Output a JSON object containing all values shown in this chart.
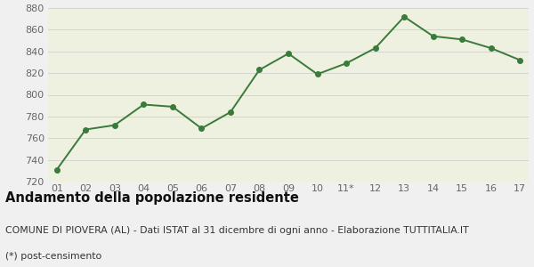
{
  "x_labels": [
    "01",
    "02",
    "03",
    "04",
    "05",
    "06",
    "07",
    "08",
    "09",
    "10",
    "11*",
    "12",
    "13",
    "14",
    "15",
    "16",
    "17"
  ],
  "y_values": [
    731,
    768,
    772,
    791,
    789,
    769,
    784,
    823,
    838,
    819,
    829,
    843,
    872,
    854,
    851,
    843,
    832
  ],
  "line_color": "#3a7a3a",
  "fill_color": "#eef0e0",
  "marker_color": "#3a7a3a",
  "background_color": "#f0f0f0",
  "plot_bg_color": "#eef0e0",
  "grid_color": "#d0d0d0",
  "ylim": [
    720,
    880
  ],
  "yticks": [
    720,
    740,
    760,
    780,
    800,
    820,
    840,
    860,
    880
  ],
  "title": "Andamento della popolazione residente",
  "subtitle1": "COMUNE DI PIOVERA (AL) - Dati ISTAT al 31 dicembre di ogni anno - Elaborazione TUTTITALIA.IT",
  "subtitle2": "(*) post-censimento",
  "title_fontsize": 10.5,
  "subtitle_fontsize": 7.8,
  "tick_fontsize": 8
}
